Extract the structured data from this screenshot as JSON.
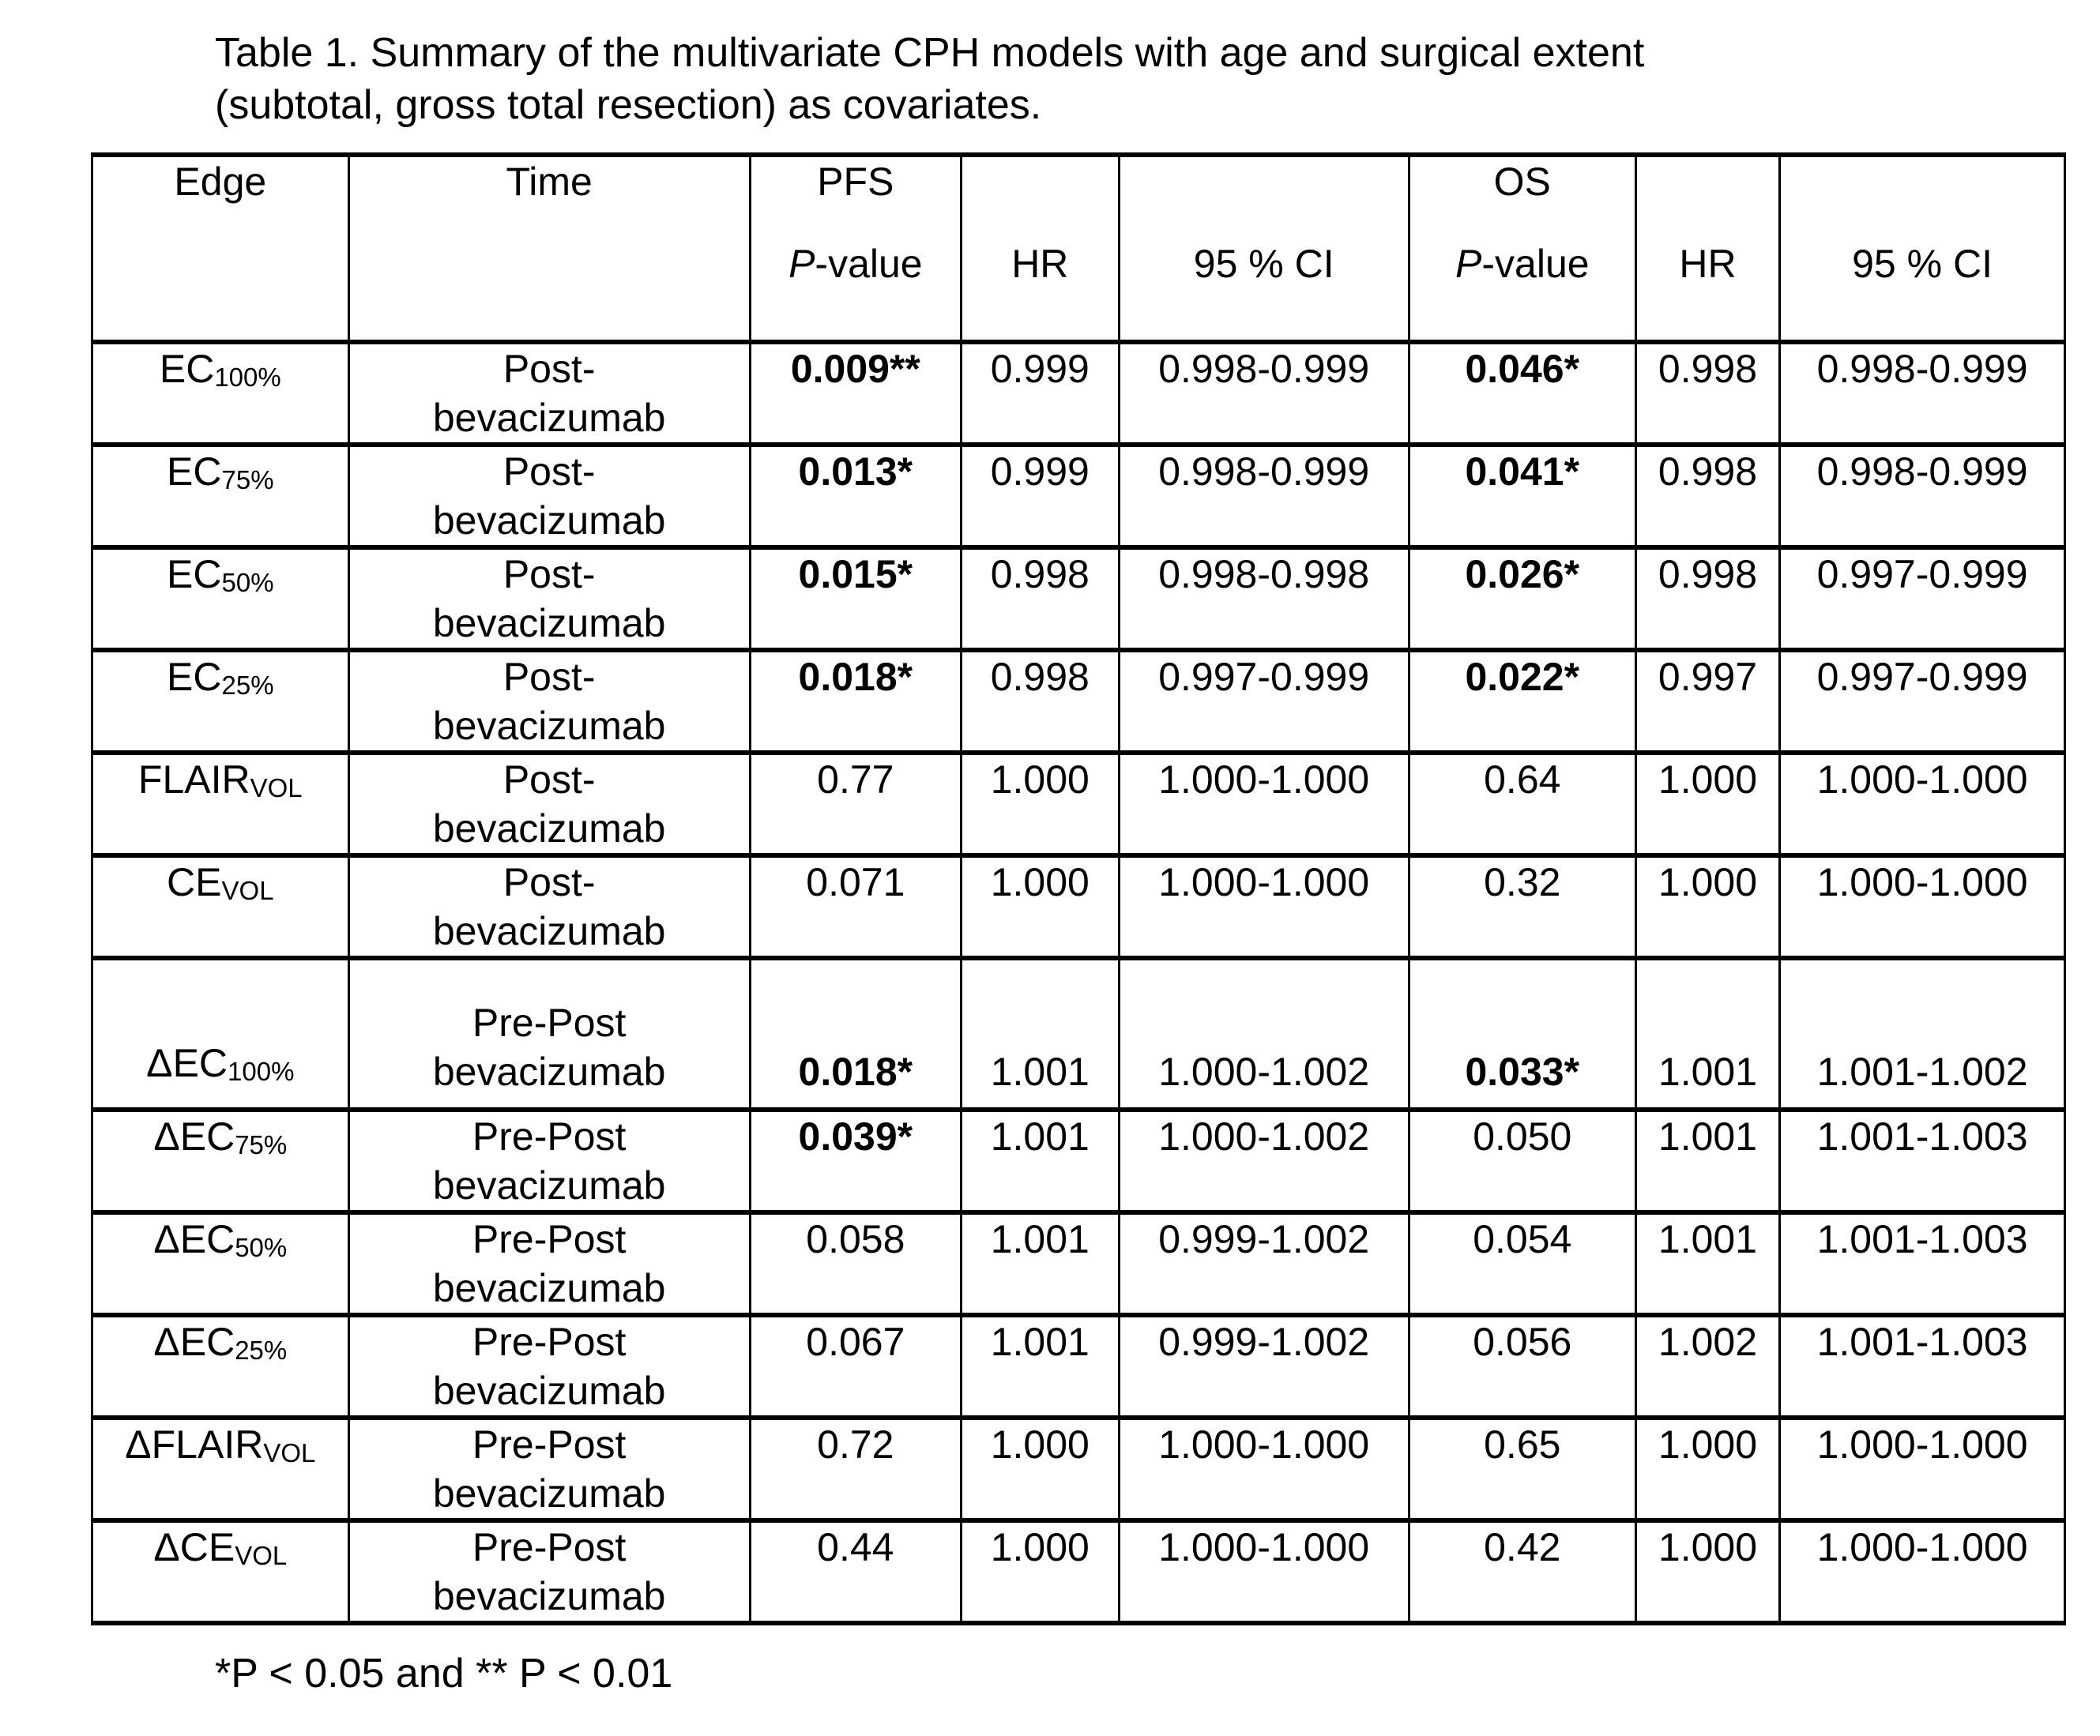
{
  "title": {
    "line1": "Table 1. Summary of the multivariate CPH models with age and surgical extent",
    "line2": "(subtotal, gross total resection) as covariates."
  },
  "colors": {
    "text": "#000000",
    "background": "#ffffff",
    "border": "#000000"
  },
  "table": {
    "header": {
      "edge": "Edge",
      "time": "Time",
      "pfs_group": "PFS",
      "os_group": "OS",
      "p_italic": "P",
      "p_rest": "-value",
      "hr": "HR",
      "ci": "95 % CI"
    },
    "rows": [
      {
        "edge_main": "EC",
        "edge_sub": "100%",
        "time1": "Post-",
        "time2": "bevacizumab",
        "pfs_p": "0.009**",
        "pfs_p_bold": true,
        "pfs_hr": "0.999",
        "pfs_ci": "0.998-0.999",
        "os_p": "0.046*",
        "os_p_bold": true,
        "os_hr": "0.998",
        "os_ci": "0.998-0.999",
        "tall": false
      },
      {
        "edge_main": "EC",
        "edge_sub": "75%",
        "time1": "Post-",
        "time2": "bevacizumab",
        "pfs_p": "0.013*",
        "pfs_p_bold": true,
        "pfs_hr": "0.999",
        "pfs_ci": "0.998-0.999",
        "os_p": "0.041*",
        "os_p_bold": true,
        "os_hr": "0.998",
        "os_ci": "0.998-0.999",
        "tall": false
      },
      {
        "edge_main": "EC",
        "edge_sub": "50%",
        "time1": "Post-",
        "time2": "bevacizumab",
        "pfs_p": "0.015*",
        "pfs_p_bold": true,
        "pfs_hr": "0.998",
        "pfs_ci": "0.998-0.998",
        "os_p": "0.026*",
        "os_p_bold": true,
        "os_hr": "0.998",
        "os_ci": "0.997-0.999",
        "tall": false
      },
      {
        "edge_main": "EC",
        "edge_sub": "25%",
        "time1": "Post-",
        "time2": "bevacizumab",
        "pfs_p": "0.018*",
        "pfs_p_bold": true,
        "pfs_hr": "0.998",
        "pfs_ci": "0.997-0.999",
        "os_p": "0.022*",
        "os_p_bold": true,
        "os_hr": "0.997",
        "os_ci": "0.997-0.999",
        "tall": false
      },
      {
        "edge_main": "FLAIR",
        "edge_sub": "VOL",
        "time1": "Post-",
        "time2": "bevacizumab",
        "pfs_p": "0.77",
        "pfs_p_bold": false,
        "pfs_hr": "1.000",
        "pfs_ci": "1.000-1.000",
        "os_p": "0.64",
        "os_p_bold": false,
        "os_hr": "1.000",
        "os_ci": "1.000-1.000",
        "tall": false
      },
      {
        "edge_main": "CE",
        "edge_sub": "VOL",
        "time1": "Post-",
        "time2": "bevacizumab",
        "pfs_p": "0.071",
        "pfs_p_bold": false,
        "pfs_hr": "1.000",
        "pfs_ci": "1.000-1.000",
        "os_p": "0.32",
        "os_p_bold": false,
        "os_hr": "1.000",
        "os_ci": "1.000-1.000",
        "tall": false
      },
      {
        "edge_main": "ΔEC",
        "edge_sub": "100%",
        "time1": "Pre-Post",
        "time2": "bevacizumab",
        "pfs_p": "0.018*",
        "pfs_p_bold": true,
        "pfs_hr": "1.001",
        "pfs_ci": "1.000-1.002",
        "os_p": "0.033*",
        "os_p_bold": true,
        "os_hr": "1.001",
        "os_ci": "1.001-1.002",
        "tall": true
      },
      {
        "edge_main": "ΔEC",
        "edge_sub": "75%",
        "time1": "Pre-Post",
        "time2": "bevacizumab",
        "pfs_p": "0.039*",
        "pfs_p_bold": true,
        "pfs_hr": "1.001",
        "pfs_ci": "1.000-1.002",
        "os_p": "0.050",
        "os_p_bold": false,
        "os_hr": "1.001",
        "os_ci": "1.001-1.003",
        "tall": false
      },
      {
        "edge_main": "ΔEC",
        "edge_sub": "50%",
        "time1": "Pre-Post",
        "time2": "bevacizumab",
        "pfs_p": "0.058",
        "pfs_p_bold": false,
        "pfs_hr": "1.001",
        "pfs_ci": "0.999-1.002",
        "os_p": "0.054",
        "os_p_bold": false,
        "os_hr": "1.001",
        "os_ci": "1.001-1.003",
        "tall": false
      },
      {
        "edge_main": "ΔEC",
        "edge_sub": "25%",
        "time1": "Pre-Post",
        "time2": "bevacizumab",
        "pfs_p": "0.067",
        "pfs_p_bold": false,
        "pfs_hr": "1.001",
        "pfs_ci": "0.999-1.002",
        "os_p": "0.056",
        "os_p_bold": false,
        "os_hr": "1.002",
        "os_ci": "1.001-1.003",
        "tall": false
      },
      {
        "edge_main": "ΔFLAIR",
        "edge_sub": "VOL",
        "time1": "Pre-Post",
        "time2": "bevacizumab",
        "pfs_p": "0.72",
        "pfs_p_bold": false,
        "pfs_hr": "1.000",
        "pfs_ci": "1.000-1.000",
        "os_p": "0.65",
        "os_p_bold": false,
        "os_hr": "1.000",
        "os_ci": "1.000-1.000",
        "tall": false
      },
      {
        "edge_main": "ΔCE",
        "edge_sub": "VOL",
        "time1": "Pre-Post",
        "time2": "bevacizumab",
        "pfs_p": "0.44",
        "pfs_p_bold": false,
        "pfs_hr": "1.000",
        "pfs_ci": "1.000-1.000",
        "os_p": "0.42",
        "os_p_bold": false,
        "os_hr": "1.000",
        "os_ci": "1.000-1.000",
        "tall": false
      }
    ]
  },
  "footnote": "*P < 0.05 and ** P < 0.01"
}
